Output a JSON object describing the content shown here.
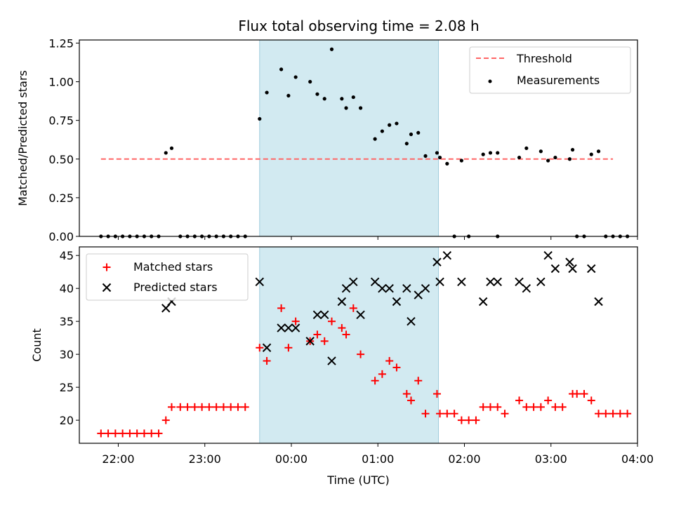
{
  "title": "Flux total observing time = 2.08 h",
  "colors": {
    "shade": "#add8e6",
    "threshold": "#ff6666",
    "matched": "#ff0000",
    "predicted": "#000000",
    "measure": "#000000"
  },
  "chart_data": [
    {
      "type": "scatter",
      "ylabel": "Matched/Predicted stars",
      "ylim": [
        0,
        1.27
      ],
      "yticks": [
        "0.00",
        "0.25",
        "0.50",
        "0.75",
        "1.00",
        "1.25"
      ],
      "xlim": [
        "21:33",
        "04:00"
      ],
      "shaded_span": [
        "23:38",
        "01:42"
      ],
      "grid": false,
      "legend_position": "top-right",
      "threshold": {
        "name": "Threshold",
        "value": 0.5,
        "x": [
          "21:48",
          "03:43"
        ]
      },
      "series": [
        {
          "name": "Measurements",
          "points": [
            [
              "21:48",
              0
            ],
            [
              "21:53",
              0
            ],
            [
              "21:58",
              0
            ],
            [
              "22:03",
              0
            ],
            [
              "22:08",
              0
            ],
            [
              "22:13",
              0
            ],
            [
              "22:18",
              0
            ],
            [
              "22:23",
              0
            ],
            [
              "22:28",
              0
            ],
            [
              "22:33",
              0.54
            ],
            [
              "22:37",
              0.57
            ],
            [
              "22:43",
              0
            ],
            [
              "22:48",
              0
            ],
            [
              "22:53",
              0
            ],
            [
              "22:58",
              0
            ],
            [
              "23:03",
              0
            ],
            [
              "23:08",
              0
            ],
            [
              "23:13",
              0
            ],
            [
              "23:18",
              0
            ],
            [
              "23:23",
              0
            ],
            [
              "23:28",
              0
            ],
            [
              "23:38",
              0.76
            ],
            [
              "23:43",
              0.93
            ],
            [
              "23:53",
              1.08
            ],
            [
              "23:58",
              0.91
            ],
            [
              "00:03",
              1.03
            ],
            [
              "00:13",
              1.0
            ],
            [
              "00:18",
              0.92
            ],
            [
              "00:23",
              0.89
            ],
            [
              "00:28",
              1.21
            ],
            [
              "00:35",
              0.89
            ],
            [
              "00:38",
              0.83
            ],
            [
              "00:43",
              0.9
            ],
            [
              "00:48",
              0.83
            ],
            [
              "00:58",
              0.63
            ],
            [
              "01:03",
              0.68
            ],
            [
              "01:08",
              0.72
            ],
            [
              "01:13",
              0.73
            ],
            [
              "01:20",
              0.6
            ],
            [
              "01:23",
              0.66
            ],
            [
              "01:28",
              0.67
            ],
            [
              "01:33",
              0.52
            ],
            [
              "01:41",
              0.54
            ],
            [
              "01:43",
              0.51
            ],
            [
              "01:48",
              0.47
            ],
            [
              "01:53",
              0
            ],
            [
              "01:58",
              0.49
            ],
            [
              "02:03",
              0
            ],
            [
              "02:13",
              0.53
            ],
            [
              "02:18",
              0.54
            ],
            [
              "02:23",
              0.54
            ],
            [
              "02:23",
              0
            ],
            [
              "02:38",
              0.51
            ],
            [
              "02:43",
              0.57
            ],
            [
              "02:53",
              0.55
            ],
            [
              "02:58",
              0.49
            ],
            [
              "03:03",
              0.51
            ],
            [
              "03:13",
              0.5
            ],
            [
              "03:15",
              0.56
            ],
            [
              "03:18",
              0
            ],
            [
              "03:23",
              0
            ],
            [
              "03:28",
              0.53
            ],
            [
              "03:33",
              0.55
            ],
            [
              "03:38",
              0
            ],
            [
              "03:43",
              0
            ],
            [
              "03:48",
              0
            ],
            [
              "03:53",
              0
            ]
          ]
        }
      ]
    },
    {
      "type": "scatter",
      "ylabel": "Count",
      "xlabel": "Time (UTC)",
      "ylim": [
        16.5,
        46.3
      ],
      "yticks": [
        "20",
        "25",
        "30",
        "35",
        "40",
        "45"
      ],
      "xticks": [
        "22:00",
        "23:00",
        "00:00",
        "01:00",
        "02:00",
        "03:00",
        "04:00"
      ],
      "xlim": [
        "21:33",
        "04:00"
      ],
      "shaded_span": [
        "23:38",
        "01:42"
      ],
      "grid": false,
      "legend_position": "top-left",
      "series": [
        {
          "name": "Matched stars",
          "marker": "+",
          "points": [
            [
              "21:48",
              18
            ],
            [
              "21:53",
              18
            ],
            [
              "21:58",
              18
            ],
            [
              "22:03",
              18
            ],
            [
              "22:08",
              18
            ],
            [
              "22:13",
              18
            ],
            [
              "22:18",
              18
            ],
            [
              "22:23",
              18
            ],
            [
              "22:28",
              18
            ],
            [
              "22:33",
              20
            ],
            [
              "22:37",
              22
            ],
            [
              "22:43",
              22
            ],
            [
              "22:48",
              22
            ],
            [
              "22:53",
              22
            ],
            [
              "22:58",
              22
            ],
            [
              "23:03",
              22
            ],
            [
              "23:08",
              22
            ],
            [
              "23:13",
              22
            ],
            [
              "23:18",
              22
            ],
            [
              "23:23",
              22
            ],
            [
              "23:28",
              22
            ],
            [
              "23:38",
              31
            ],
            [
              "23:43",
              29
            ],
            [
              "23:53",
              37
            ],
            [
              "23:58",
              31
            ],
            [
              "00:03",
              35
            ],
            [
              "00:13",
              32
            ],
            [
              "00:18",
              33
            ],
            [
              "00:23",
              32
            ],
            [
              "00:28",
              35
            ],
            [
              "00:35",
              34
            ],
            [
              "00:38",
              33
            ],
            [
              "00:43",
              37
            ],
            [
              "00:48",
              30
            ],
            [
              "00:58",
              26
            ],
            [
              "01:03",
              27
            ],
            [
              "01:08",
              29
            ],
            [
              "01:13",
              28
            ],
            [
              "01:20",
              24
            ],
            [
              "01:23",
              23
            ],
            [
              "01:28",
              26
            ],
            [
              "01:33",
              21
            ],
            [
              "01:41",
              24
            ],
            [
              "01:43",
              21
            ],
            [
              "01:48",
              21
            ],
            [
              "01:53",
              21
            ],
            [
              "01:58",
              20
            ],
            [
              "02:03",
              20
            ],
            [
              "02:08",
              20
            ],
            [
              "02:13",
              22
            ],
            [
              "02:18",
              22
            ],
            [
              "02:23",
              22
            ],
            [
              "02:28",
              21
            ],
            [
              "02:38",
              23
            ],
            [
              "02:43",
              22
            ],
            [
              "02:48",
              22
            ],
            [
              "02:53",
              22
            ],
            [
              "02:58",
              23
            ],
            [
              "03:03",
              22
            ],
            [
              "03:08",
              22
            ],
            [
              "03:15",
              24
            ],
            [
              "03:18",
              24
            ],
            [
              "03:23",
              24
            ],
            [
              "03:28",
              23
            ],
            [
              "03:33",
              21
            ],
            [
              "03:38",
              21
            ],
            [
              "03:43",
              21
            ],
            [
              "03:48",
              21
            ],
            [
              "03:53",
              21
            ]
          ]
        },
        {
          "name": "Predicted stars",
          "marker": "x",
          "points": [
            [
              "22:33",
              37
            ],
            [
              "22:37",
              38
            ],
            [
              "23:38",
              41
            ],
            [
              "23:43",
              31
            ],
            [
              "23:53",
              34
            ],
            [
              "23:58",
              34
            ],
            [
              "00:03",
              34
            ],
            [
              "00:13",
              32
            ],
            [
              "00:18",
              36
            ],
            [
              "00:23",
              36
            ],
            [
              "00:28",
              29
            ],
            [
              "00:35",
              38
            ],
            [
              "00:38",
              40
            ],
            [
              "00:43",
              41
            ],
            [
              "00:48",
              36
            ],
            [
              "00:58",
              41
            ],
            [
              "01:03",
              40
            ],
            [
              "01:08",
              40
            ],
            [
              "01:13",
              38
            ],
            [
              "01:20",
              40
            ],
            [
              "01:23",
              35
            ],
            [
              "01:28",
              39
            ],
            [
              "01:33",
              40
            ],
            [
              "01:41",
              44
            ],
            [
              "01:43",
              41
            ],
            [
              "01:48",
              45
            ],
            [
              "01:58",
              41
            ],
            [
              "02:13",
              38
            ],
            [
              "02:18",
              41
            ],
            [
              "02:23",
              41
            ],
            [
              "02:38",
              41
            ],
            [
              "02:43",
              40
            ],
            [
              "02:53",
              41
            ],
            [
              "02:58",
              45
            ],
            [
              "03:03",
              43
            ],
            [
              "03:13",
              44
            ],
            [
              "03:15",
              43
            ],
            [
              "03:28",
              43
            ],
            [
              "03:33",
              38
            ]
          ]
        }
      ]
    }
  ]
}
